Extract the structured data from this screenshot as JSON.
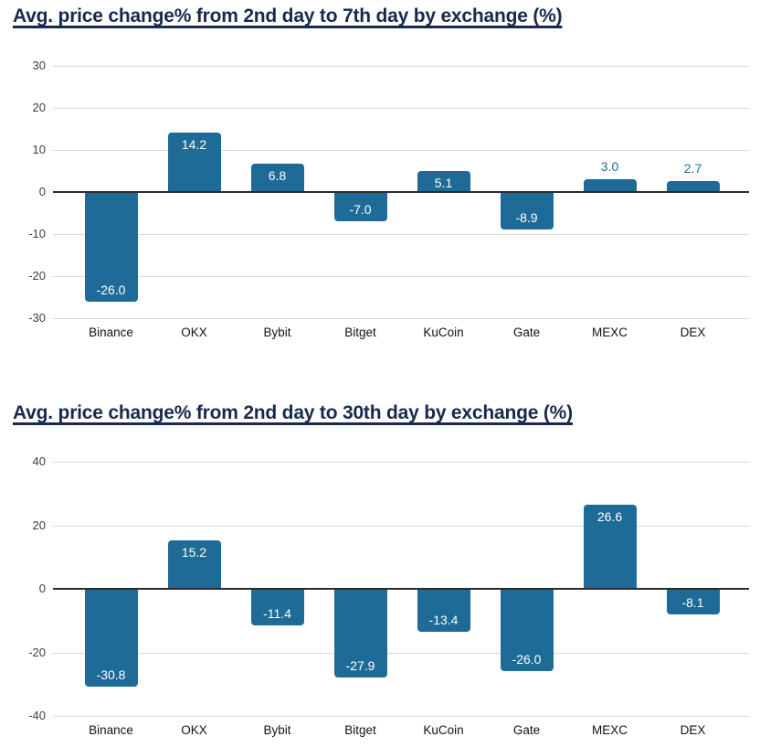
{
  "colors": {
    "bar": "#1f6b98",
    "title": "#172a4d",
    "gridline": "#d8d8d8",
    "zero_line": "#2b2b2b",
    "value_label_inside": "#ffffff",
    "value_label_outside": "#1f6b98",
    "ytick_text": "#3d3d3d",
    "xtick_text": "#121212"
  },
  "chart_data": [
    {
      "type": "bar",
      "title": "Avg. price change% from 2nd day to 7th day by exchange (%)",
      "categories": [
        "Binance",
        "OKX",
        "Bybit",
        "Bitget",
        "KuCoin",
        "Gate",
        "MEXC",
        "DEX"
      ],
      "values": [
        -26.0,
        14.2,
        6.8,
        -7.0,
        5.1,
        -8.9,
        3.0,
        2.7
      ],
      "value_labels": [
        "-26.0",
        "14.2",
        "6.8",
        "-7.0",
        "5.1",
        "-8.9",
        "3.0",
        "2.7"
      ],
      "xlabel": "",
      "ylabel": "",
      "ylim": [
        -30,
        30
      ],
      "yticks": [
        30,
        20,
        10,
        0,
        -10,
        -20,
        -30
      ],
      "grid": true,
      "legend": "none"
    },
    {
      "type": "bar",
      "title": "Avg. price change% from 2nd day to 30th day by exchange (%)",
      "categories": [
        "Binance",
        "OKX",
        "Bybit",
        "Bitget",
        "KuCoin",
        "Gate",
        "MEXC",
        "DEX"
      ],
      "values": [
        -30.8,
        15.2,
        -11.4,
        -27.9,
        -13.4,
        -26.0,
        26.6,
        -8.1
      ],
      "value_labels": [
        "-30.8",
        "15.2",
        "-11.4",
        "-27.9",
        "-13.4",
        "-26.0",
        "26.6",
        "-8.1"
      ],
      "xlabel": "",
      "ylabel": "",
      "ylim": [
        -40,
        40
      ],
      "yticks": [
        40,
        20,
        0,
        -20,
        -40
      ],
      "grid": true,
      "legend": "none"
    }
  ]
}
